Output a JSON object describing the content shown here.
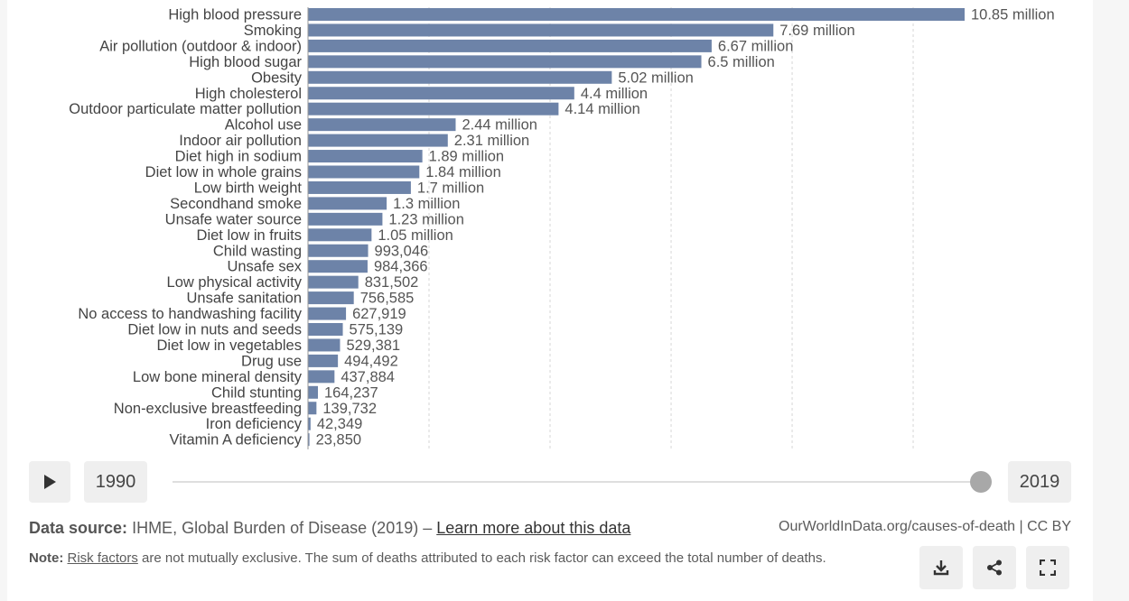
{
  "chart_data": {
    "type": "bar",
    "orientation": "horizontal",
    "categories": [
      "High blood pressure",
      "Smoking",
      "Air pollution (outdoor & indoor)",
      "High blood sugar",
      "Obesity",
      "High cholesterol",
      "Outdoor particulate matter pollution",
      "Alcohol use",
      "Indoor air pollution",
      "Diet high in sodium",
      "Diet low in whole grains",
      "Low birth weight",
      "Secondhand smoke",
      "Unsafe water source",
      "Diet low in fruits",
      "Child wasting",
      "Unsafe sex",
      "Low physical activity",
      "Unsafe sanitation",
      "No access to handwashing facility",
      "Diet low in nuts and seeds",
      "Diet low in vegetables",
      "Drug use",
      "Low bone mineral density",
      "Child stunting",
      "Non-exclusive breastfeeding",
      "Iron deficiency",
      "Vitamin A deficiency"
    ],
    "values": [
      10850000,
      7690000,
      6670000,
      6500000,
      5020000,
      4400000,
      4140000,
      2440000,
      2310000,
      1890000,
      1840000,
      1700000,
      1300000,
      1230000,
      1050000,
      993046,
      984366,
      831502,
      756585,
      627919,
      575139,
      529381,
      494492,
      437884,
      164237,
      139732,
      42349,
      23850
    ],
    "data_labels": [
      "10.85 million",
      "7.69 million",
      "6.67 million",
      "6.5 million",
      "5.02 million",
      "4.4 million",
      "4.14 million",
      "2.44 million",
      "2.31 million",
      "1.89 million",
      "1.84 million",
      "1.7 million",
      "1.3 million",
      "1.23 million",
      "1.05 million",
      "993,046",
      "984,366",
      "831,502",
      "756,585",
      "627,919",
      "575,139",
      "529,381",
      "494,492",
      "437,884",
      "164,237",
      "139,732",
      "42,349",
      "23,850"
    ],
    "xlim": [
      0,
      10850000
    ],
    "gridlines_at": [
      2000000,
      4000000,
      6000000,
      8000000,
      10000000
    ],
    "grid": true,
    "bar_color": "#6d83a8"
  },
  "timeline": {
    "start_year": "1990",
    "end_year": "2019",
    "position": 1.0
  },
  "footer": {
    "source_label": "Data source:",
    "source_text": "IHME, Global Burden of Disease (2019) –",
    "source_link": "Learn more about this data",
    "attribution": "OurWorldInData.org/causes-of-death | CC BY",
    "note_label": "Note:",
    "note_link": "Risk factors",
    "note_text": "are not mutually exclusive. The sum of deaths attributed to each risk factor can exceed the total number of deaths."
  },
  "icons": {
    "play": "play-icon",
    "download": "download-icon",
    "share": "share-icon",
    "fullscreen": "fullscreen-icon"
  }
}
